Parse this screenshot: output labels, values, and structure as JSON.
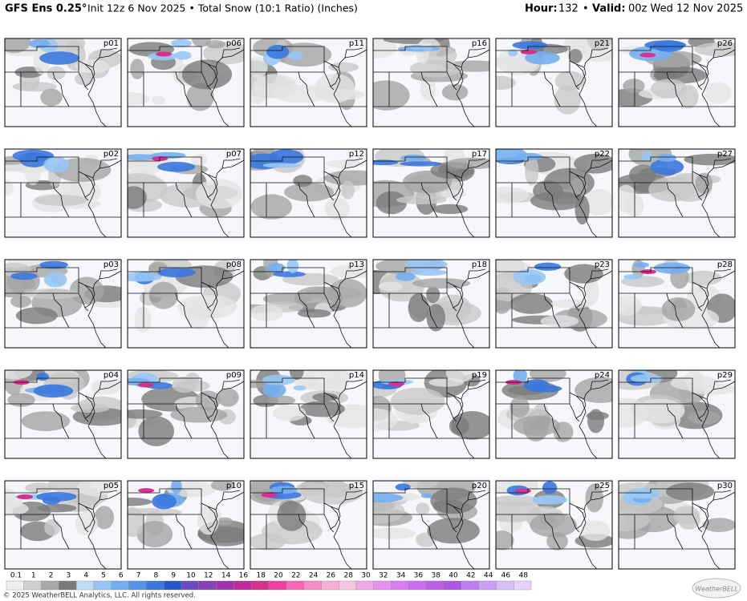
{
  "header": {
    "title": "GFS Ens 0.25°",
    "subtitle": "Init 12z 6 Nov 2025 • Total Snow (10:1 Ratio) (Inches)",
    "hour_label": "Hour:",
    "hour": "132",
    "separator": "•",
    "valid_label": "Valid:",
    "valid": "00z Wed 12 Nov 2025"
  },
  "panels": [
    "p01",
    "p02",
    "p03",
    "p04",
    "p05",
    "p06",
    "p07",
    "p08",
    "p09",
    "p10",
    "p11",
    "p12",
    "p13",
    "p14",
    "p15",
    "p16",
    "p17",
    "p18",
    "p19",
    "p20",
    "p21",
    "p22",
    "p23",
    "p24",
    "p25",
    "p26",
    "p27",
    "p28",
    "p29",
    "p30"
  ],
  "legend": {
    "labels": [
      0.1,
      1,
      2,
      3,
      4,
      5,
      6,
      7,
      8,
      9,
      10,
      12,
      14,
      16,
      18,
      20,
      22,
      24,
      26,
      28,
      30,
      32,
      34,
      36,
      38,
      40,
      42,
      44,
      46,
      48
    ],
    "colors": [
      "#eeeeee",
      "#cfcfcf",
      "#a8a8a8",
      "#7a7a7a",
      "#bcdcfa",
      "#98c6f4",
      "#74aef0",
      "#5494ea",
      "#3a78de",
      "#2258c6",
      "#6a4cc2",
      "#8640b8",
      "#a232ae",
      "#c02a9c",
      "#d8308e",
      "#ee40a0",
      "#f866b6",
      "#f88cc8",
      "#f8aed6",
      "#f8c6e2",
      "#f2a8ea",
      "#e890f0",
      "#da7cf0",
      "#cc6cf0",
      "#be5ee8",
      "#b054e2",
      "#c07cf4",
      "#caa0f6",
      "#d8bef8",
      "#e4d4fa"
    ]
  },
  "footer": {
    "copyright": "© 2025 WeatherBELL Analytics, LLC. All rights reserved.",
    "logo": "WeatherBELL"
  }
}
